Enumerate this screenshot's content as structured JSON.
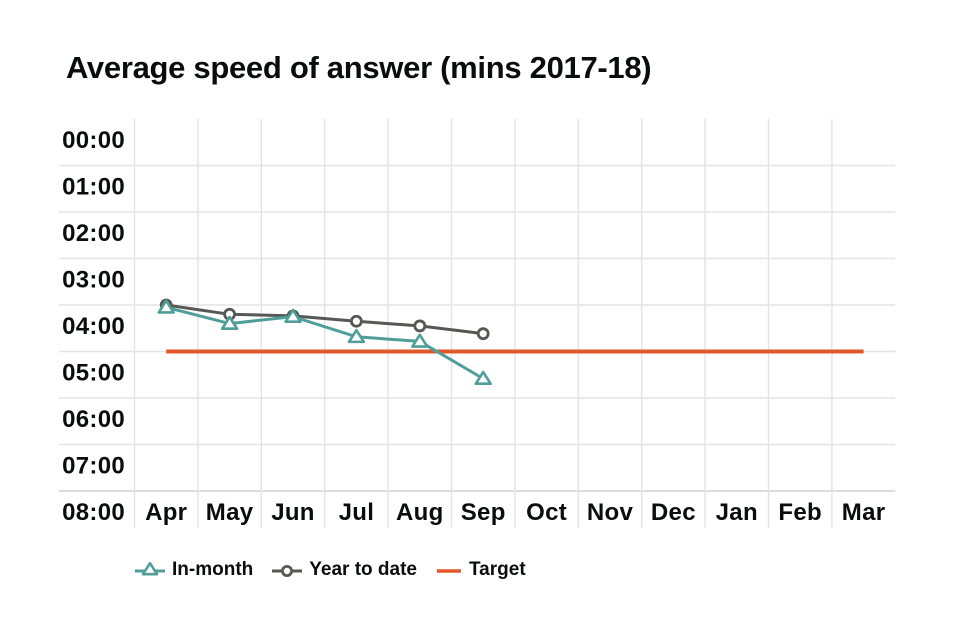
{
  "title": "Average speed of answer (mins 2017-18)",
  "colors": {
    "in_month": "#4f9e99",
    "year_to_date": "#575756",
    "target": "#e0582a",
    "grid": "#e3e3e3",
    "grid_bottom": "#d2d2d2",
    "text": "#0b0c0c",
    "marker_fill": "#ffffff",
    "background": "#ffffff"
  },
  "legend": [
    {
      "label": "In-month",
      "marker": "triangle-on-line",
      "color": "#4f9e99"
    },
    {
      "label": "Year to date",
      "marker": "circle-on-line",
      "color": "#575756"
    },
    {
      "label": "Target",
      "marker": "line",
      "color": "#e0582a"
    }
  ],
  "chart_data": {
    "type": "line",
    "title": "Average speed of answer (mins 2017-18)",
    "x_categories": [
      "Apr",
      "May",
      "Jun",
      "Jul",
      "Aug",
      "Sep",
      "Oct",
      "Nov",
      "Dec",
      "Jan",
      "Feb",
      "Mar"
    ],
    "y_ticks": [
      "00:00",
      "01:00",
      "02:00",
      "03:00",
      "04:00",
      "05:00",
      "06:00",
      "07:00",
      "08:00"
    ],
    "y_axis": {
      "unit": "minutes (mm:ss)",
      "min": "00:00",
      "max": "08:00",
      "direction": "values-increase-downward",
      "minutes_per_gridline": 1
    },
    "grid": true,
    "legend_position": "bottom",
    "series": [
      {
        "name": "In-month",
        "marker": "triangle",
        "color": "#4f9e99",
        "months": [
          "Apr",
          "May",
          "Jun",
          "Jul",
          "Aug",
          "Sep"
        ],
        "values_mmss": [
          "04:03",
          "04:24",
          "04:15",
          "04:41",
          "04:47",
          "05:35"
        ],
        "values_seconds": [
          243,
          264,
          255,
          281,
          287,
          335
        ]
      },
      {
        "name": "Year to date",
        "marker": "circle",
        "color": "#575756",
        "months": [
          "Apr",
          "May",
          "Jun",
          "Jul",
          "Aug",
          "Sep"
        ],
        "values_mmss": [
          "04:00",
          "04:12",
          "04:14",
          "04:21",
          "04:27",
          "04:37"
        ],
        "values_seconds": [
          240,
          252,
          254,
          261,
          267,
          277
        ]
      },
      {
        "name": "Target",
        "style": "horizontal-reference-line",
        "color": "#e0582a",
        "value_mmss": "05:00",
        "value_seconds": 300,
        "span_months": [
          "Apr",
          "Mar"
        ]
      }
    ]
  }
}
